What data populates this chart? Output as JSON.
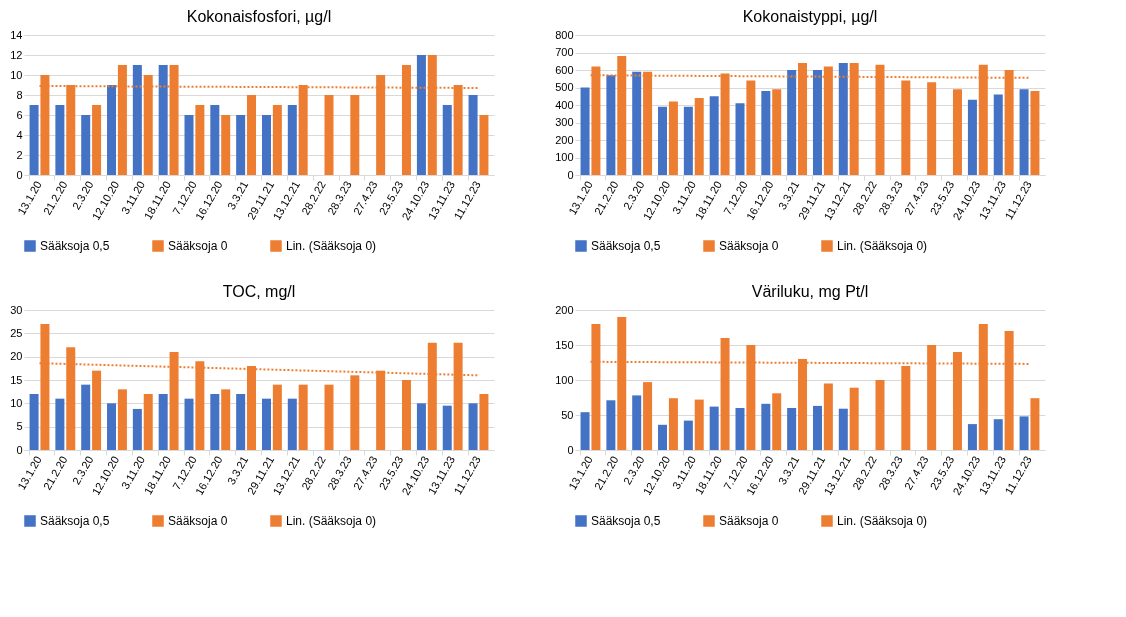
{
  "chart_data": [
    {
      "type": "bar",
      "title": "Kokonaisfosfori, µg/l",
      "categories": [
        "13.1.20",
        "21.2.20",
        "2.3.20",
        "12.10.20",
        "3.11.20",
        "18.11.20",
        "7.12.20",
        "16.12.20",
        "3.3.21",
        "29.11.21",
        "13.12.21",
        "28.2.22",
        "28.3.23",
        "27.4.23",
        "23.5.23",
        "24.10.23",
        "13.11.23",
        "11.12.23"
      ],
      "series": [
        {
          "name": "Sääksoja 0,5",
          "color": "#4472c4",
          "values": [
            7,
            7,
            6,
            9,
            11,
            11,
            6,
            7,
            6,
            6,
            7,
            null,
            null,
            null,
            null,
            12,
            7,
            8
          ]
        },
        {
          "name": "Sääksoja 0",
          "color": "#ed7d31",
          "values": [
            10,
            9,
            7,
            11,
            10,
            11,
            7,
            6,
            8,
            7,
            9,
            8,
            8,
            10,
            11,
            12,
            9,
            6
          ]
        },
        {
          "name": "Lin. (Sääksoja 0)",
          "type": "line",
          "color": "#ed7d31",
          "line_style": "dotted",
          "x": [
            "13.1.20",
            "11.12.23"
          ],
          "values": [
            8.9,
            8.7
          ]
        }
      ],
      "ylim": [
        0,
        14
      ],
      "yticks": [
        0,
        2,
        4,
        6,
        8,
        10,
        12,
        14
      ],
      "grid": "y",
      "legend": "bottom"
    },
    {
      "type": "bar",
      "title": "Kokonaistyppi, µg/l",
      "categories": [
        "13.1.20",
        "21.2.20",
        "2.3.20",
        "12.10.20",
        "3.11.20",
        "18.11.20",
        "7.12.20",
        "16.12.20",
        "3.3.21",
        "29.11.21",
        "13.12.21",
        "28.2.22",
        "28.3.23",
        "27.4.23",
        "23.5.23",
        "24.10.23",
        "13.11.23",
        "11.12.23"
      ],
      "series": [
        {
          "name": "Sääksoja 0,5",
          "color": "#4472c4",
          "values": [
            500,
            570,
            590,
            390,
            390,
            450,
            410,
            480,
            600,
            600,
            640,
            null,
            null,
            null,
            null,
            430,
            460,
            490
          ]
        },
        {
          "name": "Sääksoja 0",
          "color": "#ed7d31",
          "values": [
            620,
            680,
            590,
            420,
            440,
            580,
            540,
            490,
            640,
            620,
            640,
            630,
            540,
            530,
            490,
            630,
            600,
            480
          ]
        },
        {
          "name": "Lin. (Sääksoja 0)",
          "type": "line",
          "color": "#ed7d31",
          "line_style": "dotted",
          "x": [
            "13.1.20",
            "11.12.23"
          ],
          "values": [
            570,
            555
          ]
        }
      ],
      "ylim": [
        0,
        800
      ],
      "yticks": [
        0,
        100,
        200,
        300,
        400,
        500,
        600,
        700,
        800
      ],
      "grid": "y",
      "legend": "bottom"
    },
    {
      "type": "bar",
      "title": "TOC, mg/l",
      "categories": [
        "13.1.20",
        "21.2.20",
        "2.3.20",
        "12.10.20",
        "3.11.20",
        "18.11.20",
        "7.12.20",
        "16.12.20",
        "3.3.21",
        "29.11.21",
        "13.12.21",
        "28.2.22",
        "28.3.23",
        "27.4.23",
        "23.5.23",
        "24.10.23",
        "13.11.23",
        "11.12.23"
      ],
      "series": [
        {
          "name": "Sääksoja 0,5",
          "color": "#4472c4",
          "values": [
            12,
            11,
            14,
            10,
            8.8,
            12,
            11,
            12,
            12,
            11,
            11,
            null,
            null,
            null,
            null,
            10,
            9.5,
            10
          ]
        },
        {
          "name": "Sääksoja 0",
          "color": "#ed7d31",
          "values": [
            27,
            22,
            17,
            13,
            12,
            21,
            19,
            13,
            18,
            14,
            14,
            14,
            16,
            17,
            15,
            23,
            23,
            12
          ]
        },
        {
          "name": "Lin. (Sääksoja 0)",
          "type": "line",
          "color": "#ed7d31",
          "line_style": "dotted",
          "x": [
            "13.1.20",
            "11.12.23"
          ],
          "values": [
            18.6,
            16
          ]
        }
      ],
      "ylim": [
        0,
        30
      ],
      "yticks": [
        0,
        5,
        10,
        15,
        20,
        25,
        30
      ],
      "grid": "y",
      "legend": "bottom"
    },
    {
      "type": "bar",
      "title": "Väriluku, mg Pt/l",
      "categories": [
        "13.1.20",
        "21.2.20",
        "2.3.20",
        "12.10.20",
        "3.11.20",
        "18.11.20",
        "7.12.20",
        "16.12.20",
        "3.3.21",
        "29.11.21",
        "13.12.21",
        "28.2.22",
        "28.3.23",
        "27.4.23",
        "23.5.23",
        "24.10.23",
        "13.11.23",
        "11.12.23"
      ],
      "series": [
        {
          "name": "Sääksoja 0,5",
          "color": "#4472c4",
          "values": [
            54,
            71,
            78,
            36,
            42,
            62,
            60,
            66,
            60,
            63,
            59,
            null,
            null,
            null,
            null,
            37,
            44,
            48
          ]
        },
        {
          "name": "Sääksoja 0",
          "color": "#ed7d31",
          "values": [
            180,
            190,
            97,
            74,
            72,
            160,
            150,
            81,
            130,
            95,
            89,
            100,
            120,
            150,
            140,
            180,
            170,
            74
          ]
        },
        {
          "name": "Lin. (Sääksoja 0)",
          "type": "line",
          "color": "#ed7d31",
          "line_style": "dotted",
          "x": [
            "13.1.20",
            "11.12.23"
          ],
          "values": [
            126,
            123
          ]
        }
      ],
      "ylim": [
        0,
        200
      ],
      "yticks": [
        0,
        50,
        100,
        150,
        200
      ],
      "grid": "y",
      "legend": "bottom"
    }
  ]
}
